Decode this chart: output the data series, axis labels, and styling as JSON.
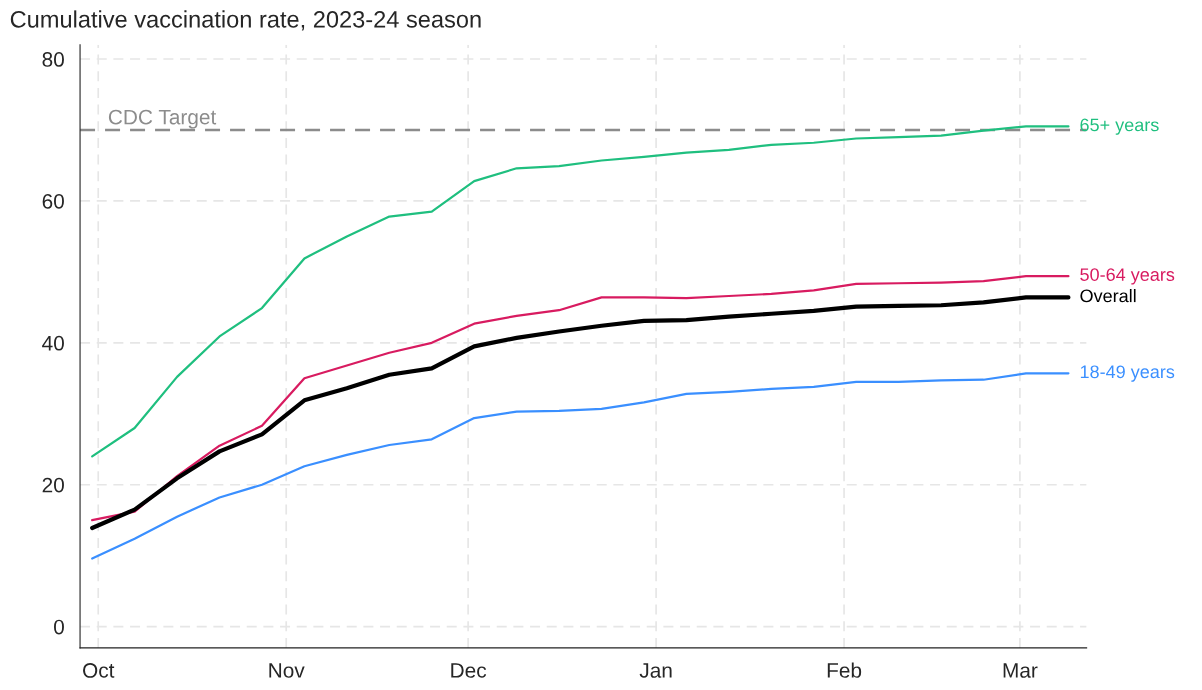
{
  "chart_data": {
    "type": "line",
    "title": "Cumulative vaccination rate, 2023-24 season",
    "x": [
      "2023-09-30",
      "2023-10-07",
      "2023-10-14",
      "2023-10-21",
      "2023-10-28",
      "2023-11-04",
      "2023-11-11",
      "2023-11-18",
      "2023-11-25",
      "2023-12-02",
      "2023-12-09",
      "2023-12-16",
      "2023-12-23",
      "2023-12-30",
      "2024-01-06",
      "2024-01-13",
      "2024-01-20",
      "2024-01-27",
      "2024-02-03",
      "2024-02-10",
      "2024-02-17",
      "2024-02-24",
      "2024-03-02",
      "2024-03-09"
    ],
    "series": [
      {
        "name": "65+ years",
        "color": "#1fbf7f",
        "values": [
          24.0,
          28.0,
          35.2,
          40.9,
          44.9,
          51.9,
          55.0,
          57.8,
          58.5,
          62.8,
          64.6,
          64.9,
          65.7,
          66.2,
          66.8,
          67.2,
          67.9,
          68.2,
          68.8,
          69.0,
          69.2,
          69.9,
          70.5,
          70.5
        ]
      },
      {
        "name": "50-64 years",
        "color": "#d81b60",
        "values": [
          15.0,
          16.2,
          21.2,
          25.5,
          28.3,
          35.0,
          36.8,
          38.6,
          40.0,
          42.7,
          43.8,
          44.6,
          46.4,
          46.4,
          46.3,
          46.6,
          46.9,
          47.4,
          48.3,
          48.4,
          48.5,
          48.7,
          49.4,
          49.4
        ]
      },
      {
        "name": "Overall",
        "color": "#000000",
        "values": [
          13.9,
          16.5,
          20.9,
          24.7,
          27.1,
          31.9,
          33.6,
          35.5,
          36.4,
          39.5,
          40.7,
          41.6,
          42.4,
          43.1,
          43.2,
          43.7,
          44.1,
          44.5,
          45.1,
          45.2,
          45.3,
          45.7,
          46.4,
          46.4
        ]
      },
      {
        "name": "18-49 years",
        "color": "#3a8fff",
        "values": [
          9.6,
          12.4,
          15.5,
          18.2,
          20.0,
          22.6,
          24.2,
          25.6,
          26.4,
          29.4,
          30.3,
          30.4,
          30.7,
          31.6,
          32.8,
          33.1,
          33.5,
          33.8,
          34.5,
          34.5,
          34.7,
          34.8,
          35.7,
          35.7
        ]
      }
    ],
    "xlim": [
      "2023-09-28",
      "2024-03-12"
    ],
    "xticks": [
      {
        "value": "2023-10-01",
        "label": "Oct"
      },
      {
        "value": "2023-11-01",
        "label": "Nov"
      },
      {
        "value": "2023-12-01",
        "label": "Dec"
      },
      {
        "value": "2024-01-01",
        "label": "Jan"
      },
      {
        "value": "2024-02-01",
        "label": "Feb"
      },
      {
        "value": "2024-03-01",
        "label": "Mar"
      }
    ],
    "ylim": [
      -3,
      82
    ],
    "yticks": [
      0,
      20,
      40,
      60,
      80
    ],
    "ref_lines": [
      {
        "axis": "y",
        "value": 70,
        "label": "CDC Target",
        "color": "#8c8c8c",
        "line_style": "dashed"
      }
    ],
    "grid": true,
    "legend": false,
    "marker": "none",
    "line_style": "solid"
  }
}
